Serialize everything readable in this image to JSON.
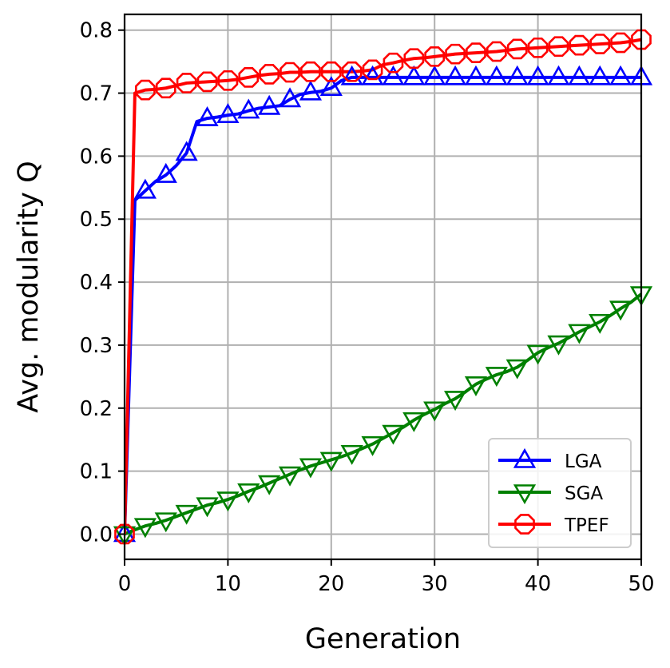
{
  "chart_data": {
    "type": "line",
    "title": "",
    "xlabel": "Generation",
    "ylabel": "Avg. modularity Q",
    "xlim": [
      0,
      50
    ],
    "ylim": [
      -0.04,
      0.825
    ],
    "xticks": [
      0,
      10,
      20,
      30,
      40,
      50
    ],
    "xtick_labels": [
      "0",
      "10",
      "20",
      "30",
      "40",
      "50"
    ],
    "yticks": [
      0.0,
      0.1,
      0.2,
      0.3,
      0.4,
      0.5,
      0.6,
      0.7,
      0.8
    ],
    "ytick_labels": [
      "0.0",
      "0.1",
      "0.2",
      "0.3",
      "0.4",
      "0.5",
      "0.6",
      "0.7",
      "0.8"
    ],
    "grid": true,
    "legend_position": "lower-right",
    "x": [
      0,
      1,
      2,
      3,
      4,
      5,
      6,
      7,
      8,
      9,
      10,
      11,
      12,
      13,
      14,
      15,
      16,
      17,
      18,
      19,
      20,
      21,
      22,
      23,
      24,
      25,
      26,
      27,
      28,
      29,
      30,
      31,
      32,
      33,
      34,
      35,
      36,
      37,
      38,
      39,
      40,
      41,
      42,
      43,
      44,
      45,
      46,
      47,
      48,
      49,
      50
    ],
    "series": [
      {
        "name": "LGA",
        "color": "#0000ff",
        "marker": "triangle-up",
        "marker_every": 2,
        "values": [
          0.0,
          0.53,
          0.545,
          0.56,
          0.57,
          0.585,
          0.605,
          0.655,
          0.66,
          0.662,
          0.665,
          0.667,
          0.672,
          0.676,
          0.678,
          0.68,
          0.69,
          0.698,
          0.701,
          0.703,
          0.708,
          0.72,
          0.725,
          0.725,
          0.725,
          0.725,
          0.725,
          0.725,
          0.725,
          0.725,
          0.725,
          0.725,
          0.725,
          0.725,
          0.725,
          0.725,
          0.725,
          0.725,
          0.725,
          0.725,
          0.725,
          0.725,
          0.725,
          0.725,
          0.725,
          0.725,
          0.725,
          0.725,
          0.725,
          0.725,
          0.725
        ]
      },
      {
        "name": "SGA",
        "color": "#008000",
        "marker": "triangle-down",
        "marker_every": 2,
        "values": [
          0.0,
          0.007,
          0.013,
          0.017,
          0.022,
          0.028,
          0.034,
          0.04,
          0.046,
          0.05,
          0.055,
          0.061,
          0.068,
          0.074,
          0.081,
          0.088,
          0.095,
          0.102,
          0.108,
          0.113,
          0.118,
          0.123,
          0.129,
          0.136,
          0.143,
          0.152,
          0.161,
          0.17,
          0.181,
          0.19,
          0.198,
          0.207,
          0.215,
          0.226,
          0.238,
          0.246,
          0.253,
          0.258,
          0.265,
          0.276,
          0.288,
          0.296,
          0.303,
          0.312,
          0.321,
          0.329,
          0.337,
          0.347,
          0.358,
          0.368,
          0.381
        ]
      },
      {
        "name": "TPEF",
        "color": "#ff0000",
        "marker": "octagon",
        "marker_every": 2,
        "values": [
          0.0,
          0.7,
          0.705,
          0.706,
          0.708,
          0.712,
          0.716,
          0.717,
          0.718,
          0.719,
          0.72,
          0.722,
          0.725,
          0.728,
          0.73,
          0.731,
          0.733,
          0.733,
          0.734,
          0.734,
          0.734,
          0.734,
          0.734,
          0.735,
          0.737,
          0.745,
          0.748,
          0.752,
          0.755,
          0.756,
          0.758,
          0.76,
          0.762,
          0.763,
          0.764,
          0.765,
          0.766,
          0.768,
          0.77,
          0.771,
          0.772,
          0.773,
          0.774,
          0.775,
          0.776,
          0.777,
          0.778,
          0.779,
          0.78,
          0.782,
          0.785
        ]
      }
    ]
  }
}
